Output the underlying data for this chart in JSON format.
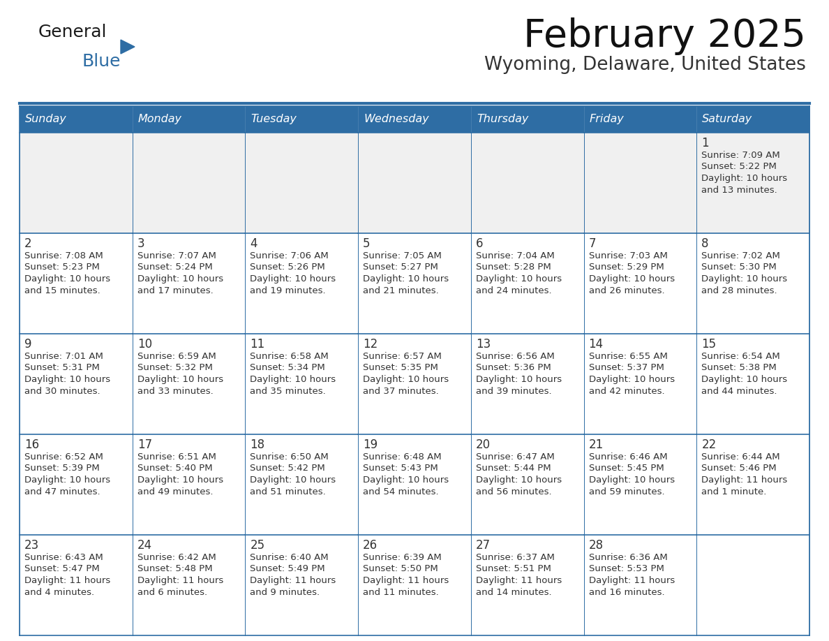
{
  "title": "February 2025",
  "subtitle": "Wyoming, Delaware, United States",
  "header_bg": "#2E6DA4",
  "header_text_color": "#FFFFFF",
  "cell_bg_light": "#F0F0F0",
  "cell_bg_white": "#FFFFFF",
  "border_color": "#2E6DA4",
  "day_number_color": "#333333",
  "cell_text_color": "#333333",
  "logo_general_color": "#1a1a1a",
  "logo_blue_color": "#2E6DA4",
  "logo_triangle_color": "#2E6DA4",
  "days_of_week": [
    "Sunday",
    "Monday",
    "Tuesday",
    "Wednesday",
    "Thursday",
    "Friday",
    "Saturday"
  ],
  "calendar_data": [
    [
      null,
      null,
      null,
      null,
      null,
      null,
      {
        "day": "1",
        "sunrise": "7:09 AM",
        "sunset": "5:22 PM",
        "daylight_line1": "Daylight: 10 hours",
        "daylight_line2": "and 13 minutes."
      }
    ],
    [
      {
        "day": "2",
        "sunrise": "7:08 AM",
        "sunset": "5:23 PM",
        "daylight_line1": "Daylight: 10 hours",
        "daylight_line2": "and 15 minutes."
      },
      {
        "day": "3",
        "sunrise": "7:07 AM",
        "sunset": "5:24 PM",
        "daylight_line1": "Daylight: 10 hours",
        "daylight_line2": "and 17 minutes."
      },
      {
        "day": "4",
        "sunrise": "7:06 AM",
        "sunset": "5:26 PM",
        "daylight_line1": "Daylight: 10 hours",
        "daylight_line2": "and 19 minutes."
      },
      {
        "day": "5",
        "sunrise": "7:05 AM",
        "sunset": "5:27 PM",
        "daylight_line1": "Daylight: 10 hours",
        "daylight_line2": "and 21 minutes."
      },
      {
        "day": "6",
        "sunrise": "7:04 AM",
        "sunset": "5:28 PM",
        "daylight_line1": "Daylight: 10 hours",
        "daylight_line2": "and 24 minutes."
      },
      {
        "day": "7",
        "sunrise": "7:03 AM",
        "sunset": "5:29 PM",
        "daylight_line1": "Daylight: 10 hours",
        "daylight_line2": "and 26 minutes."
      },
      {
        "day": "8",
        "sunrise": "7:02 AM",
        "sunset": "5:30 PM",
        "daylight_line1": "Daylight: 10 hours",
        "daylight_line2": "and 28 minutes."
      }
    ],
    [
      {
        "day": "9",
        "sunrise": "7:01 AM",
        "sunset": "5:31 PM",
        "daylight_line1": "Daylight: 10 hours",
        "daylight_line2": "and 30 minutes."
      },
      {
        "day": "10",
        "sunrise": "6:59 AM",
        "sunset": "5:32 PM",
        "daylight_line1": "Daylight: 10 hours",
        "daylight_line2": "and 33 minutes."
      },
      {
        "day": "11",
        "sunrise": "6:58 AM",
        "sunset": "5:34 PM",
        "daylight_line1": "Daylight: 10 hours",
        "daylight_line2": "and 35 minutes."
      },
      {
        "day": "12",
        "sunrise": "6:57 AM",
        "sunset": "5:35 PM",
        "daylight_line1": "Daylight: 10 hours",
        "daylight_line2": "and 37 minutes."
      },
      {
        "day": "13",
        "sunrise": "6:56 AM",
        "sunset": "5:36 PM",
        "daylight_line1": "Daylight: 10 hours",
        "daylight_line2": "and 39 minutes."
      },
      {
        "day": "14",
        "sunrise": "6:55 AM",
        "sunset": "5:37 PM",
        "daylight_line1": "Daylight: 10 hours",
        "daylight_line2": "and 42 minutes."
      },
      {
        "day": "15",
        "sunrise": "6:54 AM",
        "sunset": "5:38 PM",
        "daylight_line1": "Daylight: 10 hours",
        "daylight_line2": "and 44 minutes."
      }
    ],
    [
      {
        "day": "16",
        "sunrise": "6:52 AM",
        "sunset": "5:39 PM",
        "daylight_line1": "Daylight: 10 hours",
        "daylight_line2": "and 47 minutes."
      },
      {
        "day": "17",
        "sunrise": "6:51 AM",
        "sunset": "5:40 PM",
        "daylight_line1": "Daylight: 10 hours",
        "daylight_line2": "and 49 minutes."
      },
      {
        "day": "18",
        "sunrise": "6:50 AM",
        "sunset": "5:42 PM",
        "daylight_line1": "Daylight: 10 hours",
        "daylight_line2": "and 51 minutes."
      },
      {
        "day": "19",
        "sunrise": "6:48 AM",
        "sunset": "5:43 PM",
        "daylight_line1": "Daylight: 10 hours",
        "daylight_line2": "and 54 minutes."
      },
      {
        "day": "20",
        "sunrise": "6:47 AM",
        "sunset": "5:44 PM",
        "daylight_line1": "Daylight: 10 hours",
        "daylight_line2": "and 56 minutes."
      },
      {
        "day": "21",
        "sunrise": "6:46 AM",
        "sunset": "5:45 PM",
        "daylight_line1": "Daylight: 10 hours",
        "daylight_line2": "and 59 minutes."
      },
      {
        "day": "22",
        "sunrise": "6:44 AM",
        "sunset": "5:46 PM",
        "daylight_line1": "Daylight: 11 hours",
        "daylight_line2": "and 1 minute."
      }
    ],
    [
      {
        "day": "23",
        "sunrise": "6:43 AM",
        "sunset": "5:47 PM",
        "daylight_line1": "Daylight: 11 hours",
        "daylight_line2": "and 4 minutes."
      },
      {
        "day": "24",
        "sunrise": "6:42 AM",
        "sunset": "5:48 PM",
        "daylight_line1": "Daylight: 11 hours",
        "daylight_line2": "and 6 minutes."
      },
      {
        "day": "25",
        "sunrise": "6:40 AM",
        "sunset": "5:49 PM",
        "daylight_line1": "Daylight: 11 hours",
        "daylight_line2": "and 9 minutes."
      },
      {
        "day": "26",
        "sunrise": "6:39 AM",
        "sunset": "5:50 PM",
        "daylight_line1": "Daylight: 11 hours",
        "daylight_line2": "and 11 minutes."
      },
      {
        "day": "27",
        "sunrise": "6:37 AM",
        "sunset": "5:51 PM",
        "daylight_line1": "Daylight: 11 hours",
        "daylight_line2": "and 14 minutes."
      },
      {
        "day": "28",
        "sunrise": "6:36 AM",
        "sunset": "5:53 PM",
        "daylight_line1": "Daylight: 11 hours",
        "daylight_line2": "and 16 minutes."
      },
      null
    ]
  ]
}
